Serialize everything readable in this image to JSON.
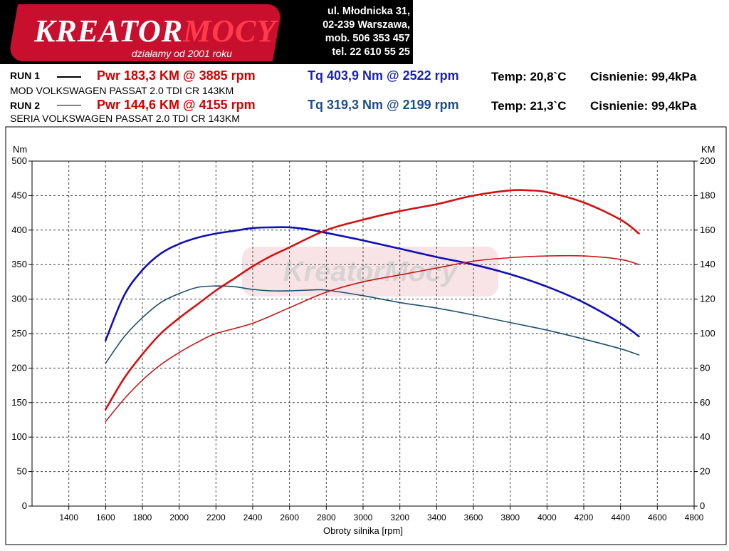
{
  "header": {
    "logo_name": "KreatorMocy",
    "logo_slogan": "działamy od 2001 roku",
    "address": [
      "ul. Młodnicka 31,",
      "02-239  Warszawa,",
      "mob.  506 353 457",
      "tel.  22 610 55 25"
    ]
  },
  "runs": [
    {
      "label": "RUN 1",
      "pwr": "Pwr  183,3 KM @ 3885 rpm",
      "tq": "Tq 403,9 Nm @ 2522 rpm",
      "temp": "Temp: 20,8`C",
      "pressure": "Cisnienie: 99,4kPa",
      "description": "MOD VOLKSWAGEN PASSAT 2.0 TDI CR 143KM"
    },
    {
      "label": "RUN 2",
      "pwr": "Pwr  144,6 KM @ 4155 rpm",
      "tq": "Tq 319,3 Nm @ 2199 rpm",
      "temp": "Temp: 21,3`C",
      "pressure": "Cisnienie: 99,4kPa",
      "description": "SERIA VOLKSWAGEN PASSAT 2.0 TDI CR 143KM"
    }
  ],
  "chart_data": {
    "type": "line",
    "xlabel": "Obroty silnika [rpm]",
    "ylabel_left": "Nm",
    "ylabel_right": "KM",
    "xlim": [
      1200,
      4800
    ],
    "ylim_left": [
      0,
      500
    ],
    "ylim_right": [
      0,
      200
    ],
    "x_ticks": [
      1400,
      1600,
      1800,
      2000,
      2200,
      2400,
      2600,
      2800,
      3000,
      3200,
      3400,
      3600,
      3800,
      4000,
      4200,
      4400,
      4600,
      4800
    ],
    "y_ticks_left": [
      0,
      50,
      100,
      150,
      200,
      250,
      300,
      350,
      400,
      450,
      500
    ],
    "y_ticks_right": [
      0,
      20,
      40,
      60,
      80,
      100,
      120,
      140,
      160,
      180,
      200
    ],
    "grid": true,
    "colors": {
      "torque_mod": "#1010b4",
      "torque_stock": "#1d4f6e",
      "power_mod": "#d41010",
      "power_stock": "#c81818",
      "grid": "#444444"
    },
    "series": [
      {
        "axis": "left",
        "x": [
          1600,
          1700,
          1800,
          1900,
          2000,
          2100,
          2200,
          2300,
          2400,
          2500,
          2600,
          2700,
          2800,
          3000,
          3200,
          3400,
          3600,
          3800,
          4000,
          4200,
          4400,
          4500
        ],
        "values": [
          240,
          305,
          342,
          366,
          380,
          389,
          395,
          399,
          403,
          404,
          404,
          401,
          396,
          385,
          373,
          361,
          350,
          336,
          318,
          295,
          265,
          246
        ]
      },
      {
        "axis": "left",
        "x": [
          1600,
          1700,
          1800,
          1900,
          2000,
          2100,
          2200,
          2300,
          2400,
          2500,
          2600,
          2700,
          2800,
          3000,
          3200,
          3400,
          3600,
          3800,
          4000,
          4200,
          4400,
          4500
        ],
        "values": [
          207,
          245,
          273,
          295,
          308,
          317,
          319,
          318,
          314,
          312,
          312,
          313,
          313,
          305,
          295,
          287,
          277,
          266,
          255,
          242,
          228,
          219
        ]
      },
      {
        "axis": "right",
        "x": [
          1600,
          1700,
          1800,
          1900,
          2000,
          2100,
          2200,
          2300,
          2400,
          2500,
          2600,
          2800,
          3000,
          3200,
          3400,
          3600,
          3800,
          3900,
          4000,
          4200,
          4400,
          4500
        ],
        "values": [
          56,
          74,
          88,
          100,
          109,
          117,
          125,
          132,
          139,
          145,
          150,
          160,
          166,
          171,
          175,
          180,
          183,
          183,
          182,
          176,
          166,
          158
        ]
      },
      {
        "axis": "right",
        "x": [
          1600,
          1700,
          1800,
          1900,
          2000,
          2100,
          2200,
          2400,
          2600,
          2800,
          3000,
          3200,
          3400,
          3600,
          3800,
          4000,
          4200,
          4400,
          4500
        ],
        "values": [
          49,
          62,
          73,
          82,
          89,
          95,
          100,
          106,
          115,
          124,
          130,
          134,
          138,
          142,
          144,
          145,
          145,
          143,
          140
        ]
      }
    ]
  }
}
